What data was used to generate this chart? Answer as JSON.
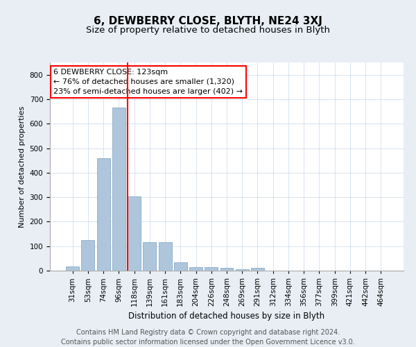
{
  "title": "6, DEWBERRY CLOSE, BLYTH, NE24 3XJ",
  "subtitle": "Size of property relative to detached houses in Blyth",
  "xlabel": "Distribution of detached houses by size in Blyth",
  "ylabel": "Number of detached properties",
  "bar_labels": [
    "31sqm",
    "53sqm",
    "74sqm",
    "96sqm",
    "118sqm",
    "139sqm",
    "161sqm",
    "183sqm",
    "204sqm",
    "226sqm",
    "248sqm",
    "269sqm",
    "291sqm",
    "312sqm",
    "334sqm",
    "356sqm",
    "377sqm",
    "399sqm",
    "421sqm",
    "442sqm",
    "464sqm"
  ],
  "bar_values": [
    18,
    125,
    458,
    665,
    302,
    115,
    115,
    35,
    15,
    15,
    10,
    5,
    10,
    0,
    0,
    0,
    0,
    0,
    0,
    0,
    0
  ],
  "bar_color": "#aec6dc",
  "bar_edge_color": "#7aa0be",
  "vline_color": "red",
  "annotation_text": "6 DEWBERRY CLOSE: 123sqm\n← 76% of detached houses are smaller (1,320)\n23% of semi-detached houses are larger (402) →",
  "annotation_box_color": "white",
  "annotation_box_edge": "red",
  "ylim": [
    0,
    850
  ],
  "yticks": [
    0,
    100,
    200,
    300,
    400,
    500,
    600,
    700,
    800
  ],
  "footer": "Contains HM Land Registry data © Crown copyright and database right 2024.\nContains public sector information licensed under the Open Government Licence v3.0.",
  "bg_color": "#e8eef4",
  "plot_bg_color": "#ffffff",
  "title_fontsize": 11,
  "subtitle_fontsize": 9.5,
  "footer_fontsize": 7,
  "ylabel_fontsize": 8,
  "xlabel_fontsize": 8.5,
  "tick_fontsize": 7.5,
  "annot_fontsize": 8
}
